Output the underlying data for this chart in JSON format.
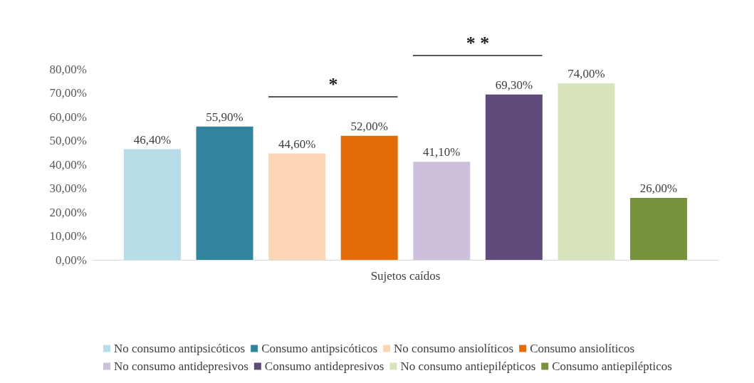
{
  "chart_data": {
    "type": "bar",
    "categories": [
      "Sujetos caídos"
    ],
    "xlabel": null,
    "series": [
      {
        "name": "No consumo antipsicóticos",
        "color": "#b7dde8",
        "values": [
          46.4
        ],
        "value_labels": [
          "46,40%"
        ]
      },
      {
        "name": "Consumo antipsicóticos",
        "color": "#31849b",
        "values": [
          55.9
        ],
        "value_labels": [
          "55,90%"
        ]
      },
      {
        "name": "No consumo ansiolíticos",
        "color": "#fcd5b4",
        "values": [
          44.6
        ],
        "value_labels": [
          "44,60%"
        ]
      },
      {
        "name": "Consumo ansiolíticos",
        "color": "#e36c09",
        "values": [
          52.0
        ],
        "value_labels": [
          "52,00%"
        ]
      },
      {
        "name": "No consumo antidepresivos",
        "color": "#ccc0da",
        "values": [
          41.1
        ],
        "value_labels": [
          "41,10%"
        ]
      },
      {
        "name": "Consumo antidepresivos",
        "color": "#604a7b",
        "values": [
          69.3
        ],
        "value_labels": [
          "69,30%"
        ]
      },
      {
        "name": "No consumo antiepilépticos",
        "color": "#d7e4bc",
        "values": [
          74.0
        ],
        "value_labels": [
          "74,00%"
        ]
      },
      {
        "name": "Consumo antiepilépticos",
        "color": "#76923c",
        "values": [
          26.0
        ],
        "value_labels": [
          "26,00%"
        ]
      }
    ],
    "ylim": [
      0,
      80
    ],
    "yticks": [
      {
        "value": 0,
        "label": "0,00%"
      },
      {
        "value": 10,
        "label": "10,00%"
      },
      {
        "value": 20,
        "label": "20,00%"
      },
      {
        "value": 30,
        "label": "30,00%"
      },
      {
        "value": 40,
        "label": "40,00%"
      },
      {
        "value": 50,
        "label": "50,00%"
      },
      {
        "value": 60,
        "label": "60,00%"
      },
      {
        "value": 70,
        "label": "70,00%"
      },
      {
        "value": 80,
        "label": "80,00%"
      }
    ],
    "annotations": [
      "*",
      "* *"
    ],
    "grid": false,
    "legend": "bottom"
  }
}
